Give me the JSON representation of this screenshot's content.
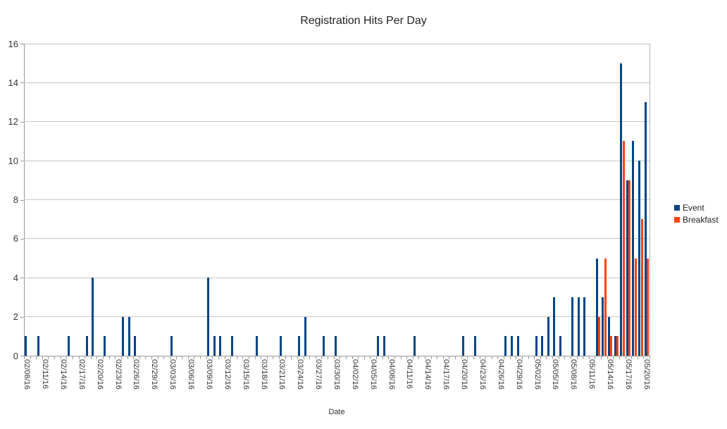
{
  "title": "Registration Hits Per Day",
  "chart_data": {
    "type": "bar",
    "title": "Registration Hits Per Day",
    "xlabel": "Date",
    "ylabel": "",
    "ylim": [
      0,
      16
    ],
    "y_ticks": [
      0,
      2,
      4,
      6,
      8,
      10,
      12,
      14,
      16
    ],
    "x_start": "02/08/16",
    "x_end": "05/20/16",
    "x_label_interval_days": 3,
    "grid": "horizontal",
    "legend_position": "right",
    "series": [
      {
        "name": "Event",
        "color": "#004586",
        "values_by_date": {
          "02/08/16": 1,
          "02/10/16": 1,
          "02/15/16": 1,
          "02/18/16": 1,
          "02/19/16": 4,
          "02/21/16": 1,
          "02/24/16": 2,
          "02/25/16": 2,
          "02/26/16": 1,
          "03/03/16": 1,
          "03/09/16": 4,
          "03/10/16": 1,
          "03/11/16": 1,
          "03/13/16": 1,
          "03/17/16": 1,
          "03/21/16": 1,
          "03/24/16": 1,
          "03/25/16": 2,
          "03/28/16": 1,
          "03/30/16": 1,
          "04/06/16": 1,
          "04/07/16": 1,
          "04/12/16": 1,
          "04/20/16": 1,
          "04/22/16": 1,
          "04/27/16": 1,
          "04/28/16": 1,
          "04/29/16": 1,
          "05/02/16": 1,
          "05/03/16": 1,
          "05/04/16": 2,
          "05/05/16": 3,
          "05/06/16": 1,
          "05/08/16": 3,
          "05/09/16": 3,
          "05/10/16": 3,
          "05/12/16": 5,
          "05/13/16": 3,
          "05/14/16": 2,
          "05/15/16": 1,
          "05/16/16": 15,
          "05/17/16": 9,
          "05/18/16": 11,
          "05/19/16": 10,
          "05/20/16": 13
        }
      },
      {
        "name": "Breakfast",
        "color": "#FF420E",
        "values_by_date": {
          "05/12/16": 2,
          "05/13/16": 5,
          "05/14/16": 1,
          "05/15/16": 1,
          "05/16/16": 11,
          "05/17/16": 9,
          "05/18/16": 5,
          "05/19/16": 7,
          "05/20/16": 5
        }
      }
    ]
  }
}
